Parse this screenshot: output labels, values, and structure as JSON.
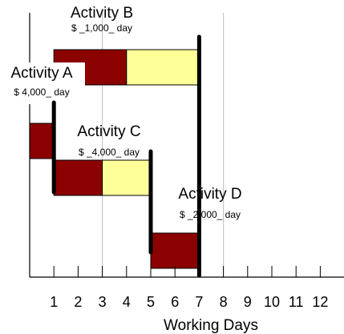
{
  "chart": {
    "x_axis": {
      "label": "Working Days",
      "tick_labels": [
        "1",
        "2",
        "3",
        "4",
        "5",
        "6",
        "7",
        "8",
        "9",
        "10",
        "11",
        "12"
      ],
      "min": 0,
      "max": 13
    },
    "activities": [
      {
        "id": "A",
        "name": "Activity A",
        "cost": "$ 4,000_ day",
        "start": 0,
        "critical_end": 1,
        "end": 1,
        "row": 2
      },
      {
        "id": "B",
        "name": "Activity B",
        "cost": "$ _1,000_ day",
        "start": 1,
        "critical_end": 4,
        "end": 7,
        "row": 0
      },
      {
        "id": "C",
        "name": "Activity C",
        "cost": "$ _4,000_ day",
        "start": 1,
        "critical_end": 3,
        "end": 5,
        "row": 3
      },
      {
        "id": "D",
        "name": "Activity D",
        "cost": "$ _2,000_ day",
        "start": 5,
        "critical_end": 7,
        "end": 7,
        "row": 5
      }
    ],
    "milestone_days": [
      1,
      5,
      7
    ],
    "gridline_days": [
      3,
      8
    ],
    "colors": {
      "duration": "#8b0000",
      "float": "#ffff99",
      "milestone": "#000000",
      "gridline": "#c8c8c8"
    }
  }
}
